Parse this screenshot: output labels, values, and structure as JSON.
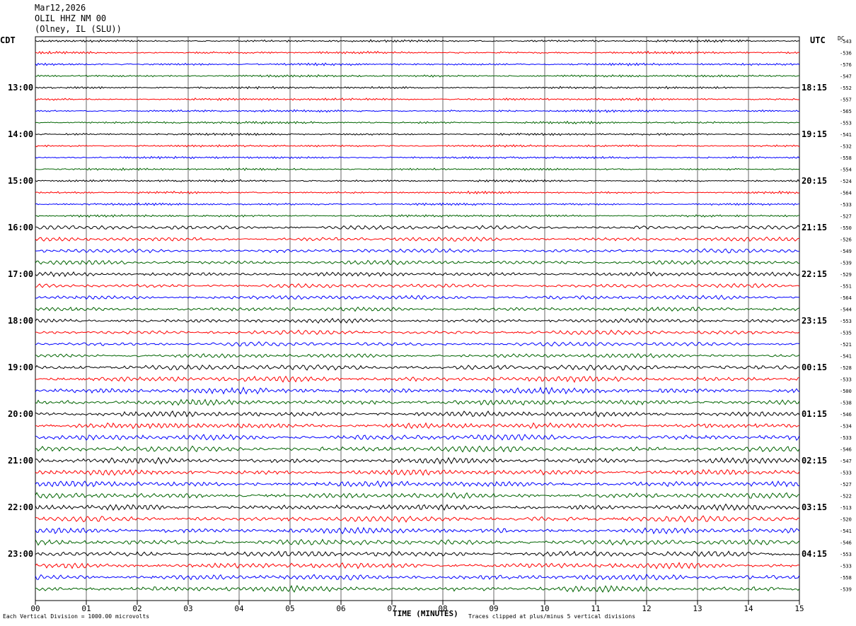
{
  "header": {
    "date": "Mar12,2026",
    "station": "OLIL HHZ NM 00",
    "location": "(Olney, IL (SLU))"
  },
  "labels": {
    "left_zone": "CDT",
    "right_zone": "UTC",
    "dc": "DC",
    "xlabel": "TIME (MINUTES)",
    "scale_note": "Each Vertical Division = 1000.00 microvolts",
    "clip_note": "Traces clipped at plus/minus 5 vertical divisions"
  },
  "colors": {
    "trace_cycle": [
      "#000000",
      "#ff0000",
      "#0000ff",
      "#006400"
    ],
    "grid": "#000000"
  },
  "chart_data": {
    "type": "line",
    "title": "",
    "x_ticks": [
      "00",
      "01",
      "02",
      "03",
      "04",
      "05",
      "06",
      "07",
      "08",
      "09",
      "10",
      "11",
      "12",
      "13",
      "14",
      "15"
    ],
    "xlim": [
      0,
      15
    ],
    "rows_per_hour": 4,
    "row_minutes": 15,
    "left_hour_labels": [
      "13:00",
      "14:00",
      "15:00",
      "16:00",
      "17:00",
      "18:00",
      "19:00",
      "20:00",
      "21:00",
      "22:00",
      "23:00"
    ],
    "right_hour_labels": [
      "18:15",
      "19:15",
      "20:15",
      "21:15",
      "22:15",
      "23:15",
      "00:15",
      "01:15",
      "02:15",
      "03:15",
      "04:15"
    ],
    "dc_values": [
      -543,
      -536,
      -576,
      -547,
      -552,
      -557,
      -565,
      -553,
      -541,
      -532,
      -558,
      -554,
      -524,
      -564,
      -533,
      -527,
      -550,
      -526,
      -549,
      -539,
      -529,
      -551,
      -564,
      -544,
      -553,
      -535,
      -521,
      -541,
      -528,
      -533,
      -500,
      -538,
      -546,
      -534,
      -533,
      -546,
      -547,
      -533,
      -527,
      -522,
      -513,
      -520,
      -541,
      -546,
      -553,
      -533,
      -558,
      -539
    ],
    "trace_amplitude_units": "vertical divisions",
    "clip_level": 5
  }
}
